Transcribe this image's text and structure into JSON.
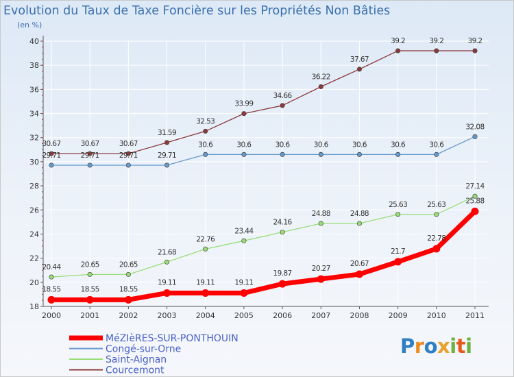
{
  "chart_data": {
    "type": "line",
    "title": "Evolution du Taux de Taxe Foncière sur les Propriétés Non Bâties",
    "ylabel": "(en %)",
    "xlabel": "",
    "ylim": [
      18,
      40
    ],
    "yticks": [
      18,
      20,
      22,
      24,
      26,
      28,
      30,
      32,
      34,
      36,
      38,
      40
    ],
    "categories": [
      "2000",
      "2001",
      "2002",
      "2003",
      "2004",
      "2005",
      "2006",
      "2007",
      "2008",
      "2009",
      "2010",
      "2011"
    ],
    "series": [
      {
        "name": "MéZIèRES-SUR-PONTHOUIN",
        "color": "#ff0000",
        "values": [
          18.55,
          18.55,
          18.55,
          19.11,
          19.11,
          19.11,
          19.87,
          20.27,
          20.67,
          21.7,
          22.78,
          25.88
        ],
        "labels": [
          "18.55",
          "18.55",
          "18.55",
          "19.11",
          "19.11",
          "19.11",
          "19.87",
          "20.27",
          "20.67",
          "21.7",
          "22.78",
          "25.88"
        ]
      },
      {
        "name": "Congé-sur-Orne",
        "color": "#6699cc",
        "values": [
          29.71,
          29.71,
          29.71,
          29.71,
          30.6,
          30.6,
          30.6,
          30.6,
          30.6,
          30.6,
          30.6,
          32.08
        ],
        "labels": [
          "29.71",
          "29.71",
          "29.71",
          "29.71",
          "30.6",
          "30.6",
          "30.6",
          "30.6",
          "30.6",
          "30.6",
          "30.6",
          "32.08"
        ]
      },
      {
        "name": "Saint-Aignan",
        "color": "#99dd77",
        "values": [
          20.44,
          20.65,
          20.65,
          21.68,
          22.76,
          23.44,
          24.16,
          24.88,
          24.88,
          25.63,
          25.63,
          27.14
        ],
        "labels": [
          "20.44",
          "20.65",
          "20.65",
          "21.68",
          "22.76",
          "23.44",
          "24.16",
          "24.88",
          "24.88",
          "25.63",
          "25.63",
          "27.14"
        ]
      },
      {
        "name": "Courcemont",
        "color": "#8b3a3a",
        "values": [
          30.67,
          30.67,
          30.67,
          31.59,
          32.53,
          33.99,
          34.66,
          36.22,
          37.67,
          39.2,
          39.2,
          39.2
        ],
        "labels": [
          "30.67",
          "30.67",
          "30.67",
          "31.59",
          "32.53",
          "33.99",
          "34.66",
          "36.22",
          "37.67",
          "39.2",
          "39.2",
          "39.2"
        ]
      }
    ]
  },
  "logo": {
    "text": "Proxiti"
  }
}
